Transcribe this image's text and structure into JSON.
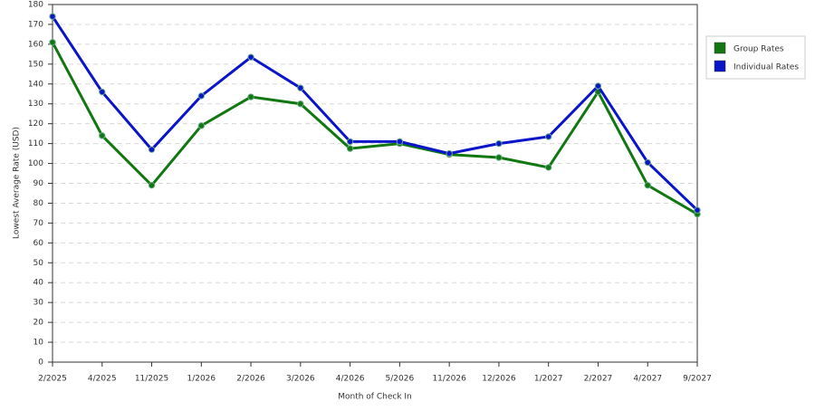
{
  "chart_data": {
    "type": "line",
    "xlabel": "Month of Check In",
    "ylabel": "Lowest Average Rate (USD)",
    "categories": [
      "2/2025",
      "4/2025",
      "11/2025",
      "1/2026",
      "2/2026",
      "3/2026",
      "4/2026",
      "5/2026",
      "11/2026",
      "12/2026",
      "1/2027",
      "2/2027",
      "4/2027",
      "9/2027"
    ],
    "series": [
      {
        "name": "Group Rates",
        "color": "#117711",
        "values": [
          161,
          114,
          89,
          119,
          133.5,
          130,
          107.5,
          110,
          104.5,
          103,
          98,
          136,
          89,
          74.5
        ]
      },
      {
        "name": "Individual Rates",
        "color": "#0a14c8",
        "values": [
          174,
          136,
          107,
          134,
          153.5,
          138,
          111,
          111,
          105,
          110,
          113.5,
          139,
          100.5,
          76.5
        ]
      }
    ],
    "ylim": [
      0,
      180
    ],
    "yticks": [
      0,
      10,
      20,
      30,
      40,
      50,
      60,
      70,
      80,
      90,
      100,
      110,
      120,
      130,
      140,
      150,
      160,
      170,
      180
    ],
    "grid": true,
    "legend": "top-right"
  }
}
